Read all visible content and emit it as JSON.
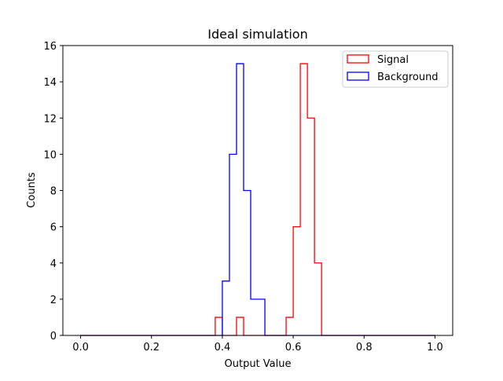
{
  "chart_data": {
    "type": "histogram",
    "title": "Ideal simulation",
    "xlabel": "Output Value",
    "ylabel": "Counts",
    "xlim": [
      -0.05,
      1.05
    ],
    "ylim": [
      0,
      16
    ],
    "xticks": [
      0.0,
      0.2,
      0.4,
      0.6,
      0.8,
      1.0
    ],
    "xtick_labels": [
      "0.0",
      "0.2",
      "0.4",
      "0.6",
      "0.8",
      "1.0"
    ],
    "yticks": [
      0,
      2,
      4,
      6,
      8,
      10,
      12,
      14,
      16
    ],
    "ytick_labels": [
      "0",
      "2",
      "4",
      "6",
      "8",
      "10",
      "12",
      "14",
      "16"
    ],
    "grid": false,
    "legend_position": "top-right",
    "histtype": "step",
    "bin_width": 0.02,
    "bin_range": [
      0.0,
      1.0
    ],
    "series": [
      {
        "name": "Signal",
        "color": "#ff0000",
        "bins": [
          {
            "x0": 0.38,
            "x1": 0.4,
            "count": 1
          },
          {
            "x0": 0.44,
            "x1": 0.46,
            "count": 1
          },
          {
            "x0": 0.58,
            "x1": 0.6,
            "count": 1
          },
          {
            "x0": 0.6,
            "x1": 0.62,
            "count": 6
          },
          {
            "x0": 0.62,
            "x1": 0.64,
            "count": 15
          },
          {
            "x0": 0.64,
            "x1": 0.66,
            "count": 12
          },
          {
            "x0": 0.66,
            "x1": 0.68,
            "count": 4
          }
        ]
      },
      {
        "name": "Background",
        "color": "#0000ff",
        "bins": [
          {
            "x0": 0.4,
            "x1": 0.42,
            "count": 3
          },
          {
            "x0": 0.42,
            "x1": 0.44,
            "count": 10
          },
          {
            "x0": 0.44,
            "x1": 0.46,
            "count": 15
          },
          {
            "x0": 0.46,
            "x1": 0.48,
            "count": 8
          },
          {
            "x0": 0.48,
            "x1": 0.5,
            "count": 2
          },
          {
            "x0": 0.5,
            "x1": 0.52,
            "count": 2
          }
        ]
      }
    ]
  }
}
